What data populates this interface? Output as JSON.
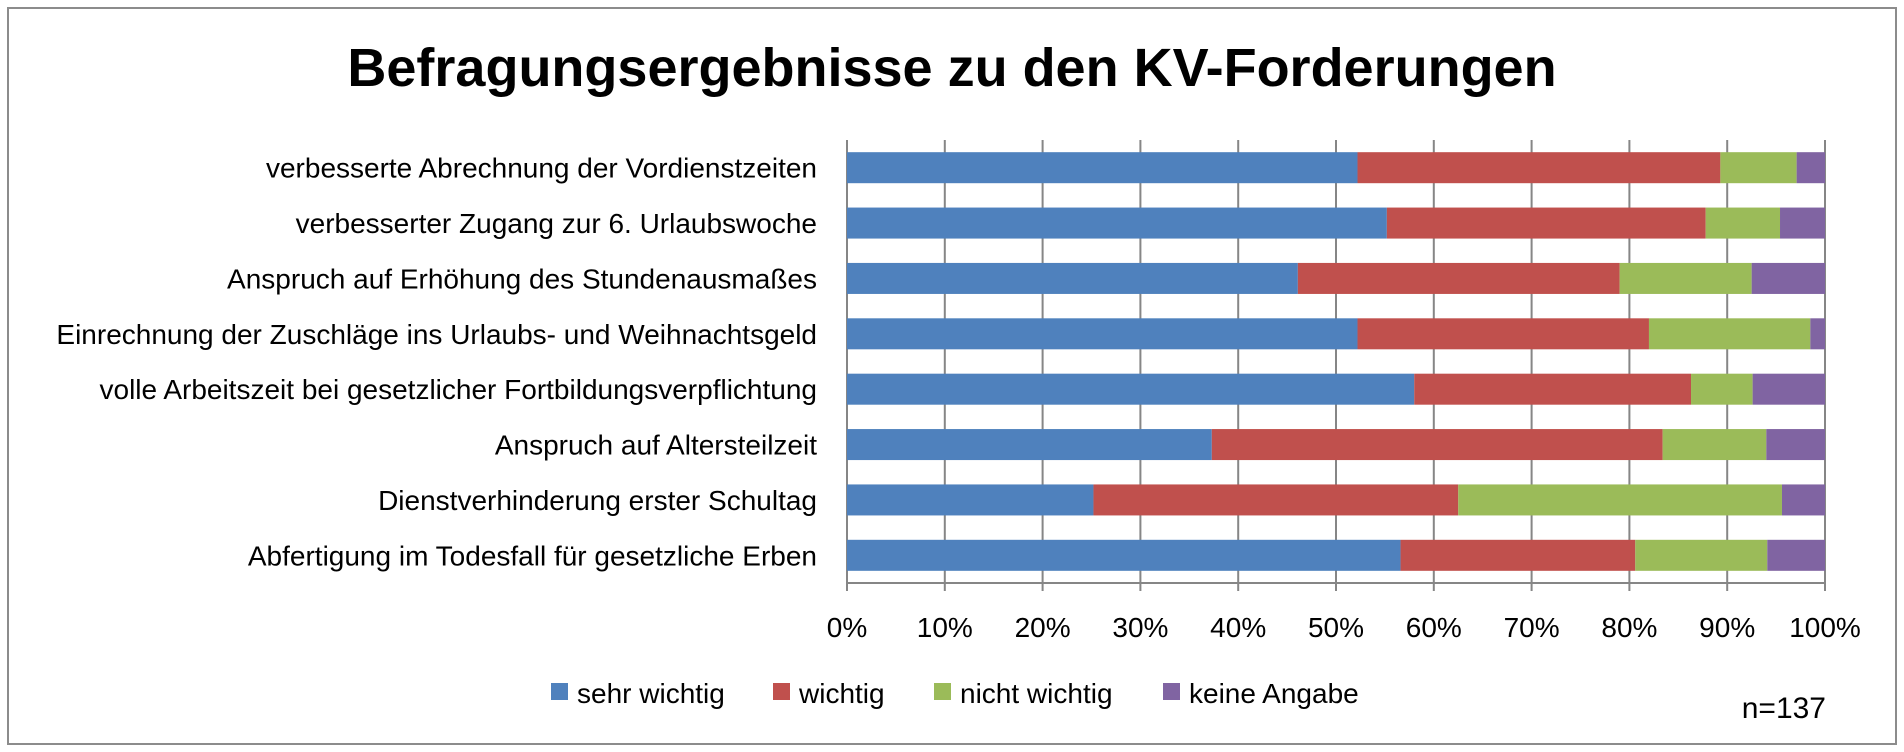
{
  "chart_data": {
    "type": "bar",
    "orientation": "horizontal",
    "stacked": "percent",
    "title": "Befragungsergebnisse zu den KV-Forderungen",
    "categories": [
      "verbesserte Abrechnung der Vordienstzeiten",
      "verbesserter Zugang zur 6. Urlaubswoche",
      "Anspruch auf Erhöhung des Stundenausmaßes",
      "Einrechnung der Zuschläge ins Urlaubs- und Weihnachtsgeld",
      "volle Arbeitszeit bei gesetzlicher Fortbildungsverpflichtung",
      "Anspruch auf Altersteilzeit",
      "Dienstverhinderung erster Schultag",
      "Abfertigung im Todesfall für gesetzliche Erben"
    ],
    "series": [
      {
        "name": "sehr wichtig",
        "color": "#4F81BD",
        "values": [
          52.2,
          55.2,
          46.1,
          52.2,
          58.0,
          37.3,
          25.2,
          56.6
        ]
      },
      {
        "name": "wichtig",
        "color": "#C0504D",
        "values": [
          37.1,
          32.6,
          32.9,
          29.8,
          28.3,
          46.1,
          37.3,
          24.0
        ]
      },
      {
        "name": "nicht wichtig",
        "color": "#9BBB59",
        "values": [
          7.8,
          7.6,
          13.5,
          16.5,
          6.3,
          10.6,
          33.1,
          13.5
        ]
      },
      {
        "name": "keine Angabe",
        "color": "#8064A2",
        "values": [
          2.9,
          4.6,
          7.5,
          1.5,
          7.4,
          6.0,
          4.4,
          5.9
        ]
      }
    ],
    "xlim": [
      0,
      100
    ],
    "x_ticks": [
      "0%",
      "10%",
      "20%",
      "30%",
      "40%",
      "50%",
      "60%",
      "70%",
      "80%",
      "90%",
      "100%"
    ],
    "grid": "vertical",
    "legend": "bottom",
    "note": "n=137"
  }
}
